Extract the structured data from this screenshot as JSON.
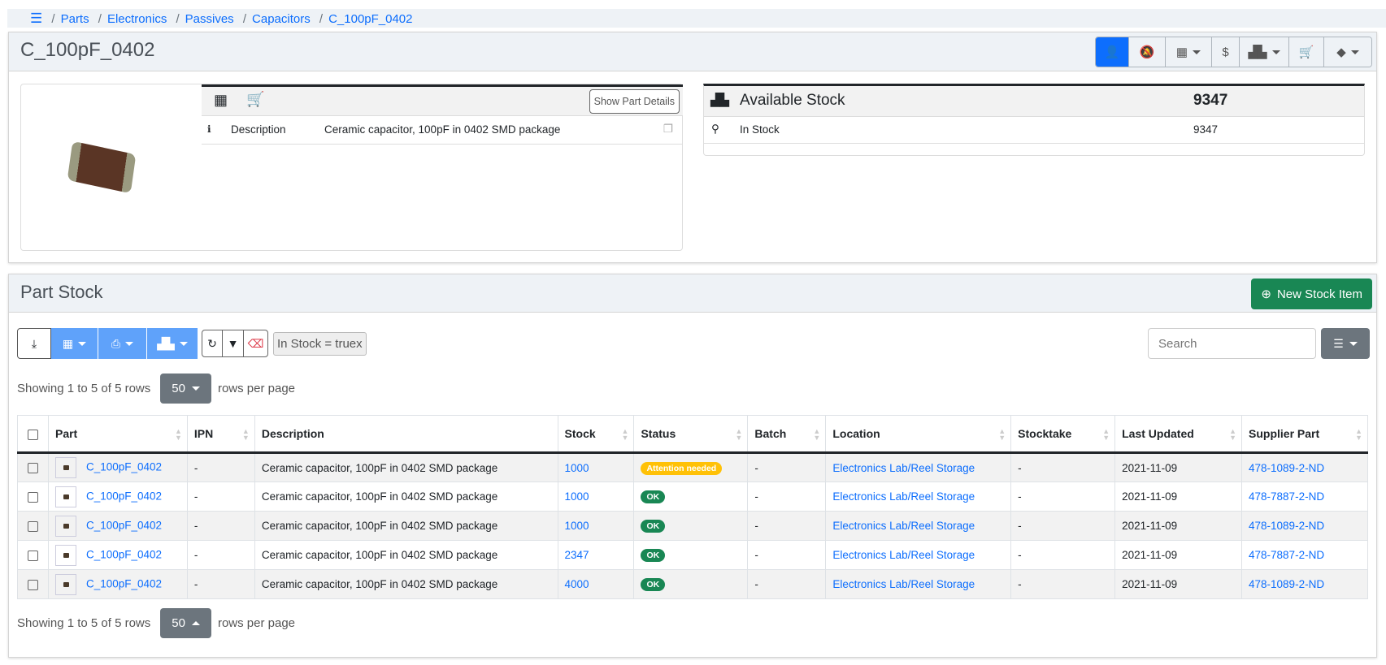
{
  "breadcrumb": [
    "Parts",
    "Electronics",
    "Passives",
    "Capacitors",
    "C_100pF_0402"
  ],
  "part": {
    "title": "C_100pF_0402",
    "show_details_label": "Show Part Details",
    "description_label": "Description",
    "description": "Ceramic capacitor, 100pF in 0402 SMD package"
  },
  "stock": {
    "available_label": "Available Stock",
    "available_value": "9347",
    "in_stock_label": "In Stock",
    "in_stock_value": "9347"
  },
  "part_stock": {
    "title": "Part Stock",
    "new_button": "New Stock Item",
    "filter_label": "In Stock = true",
    "filter_remove": "x",
    "search_placeholder": "Search",
    "showing": "Showing 1 to 5 of 5 rows",
    "page_size": "50",
    "rows_per_page": "rows per page"
  },
  "colors": {
    "primary": "#0d6efd",
    "success": "#198754",
    "warning": "#ffc107",
    "light_primary": "#5fa2fa"
  },
  "table": {
    "headers": [
      "Part",
      "IPN",
      "Description",
      "Stock",
      "Status",
      "Batch",
      "Location",
      "Stocktake",
      "Last Updated",
      "Supplier Part"
    ],
    "rows": [
      {
        "part": "C_100pF_0402",
        "ipn": "-",
        "description": "Ceramic capacitor, 100pF in 0402 SMD package",
        "stock": "1000",
        "status": "Attention needed",
        "status_color": "#ffc107",
        "batch": "-",
        "location": "Electronics Lab/Reel Storage",
        "stocktake": "-",
        "updated": "2021-11-09",
        "supplier": "478-1089-2-ND"
      },
      {
        "part": "C_100pF_0402",
        "ipn": "-",
        "description": "Ceramic capacitor, 100pF in 0402 SMD package",
        "stock": "1000",
        "status": "OK",
        "status_color": "#198754",
        "batch": "-",
        "location": "Electronics Lab/Reel Storage",
        "stocktake": "-",
        "updated": "2021-11-09",
        "supplier": "478-7887-2-ND"
      },
      {
        "part": "C_100pF_0402",
        "ipn": "-",
        "description": "Ceramic capacitor, 100pF in 0402 SMD package",
        "stock": "1000",
        "status": "OK",
        "status_color": "#198754",
        "batch": "-",
        "location": "Electronics Lab/Reel Storage",
        "stocktake": "-",
        "updated": "2021-11-09",
        "supplier": "478-1089-2-ND"
      },
      {
        "part": "C_100pF_0402",
        "ipn": "-",
        "description": "Ceramic capacitor, 100pF in 0402 SMD package",
        "stock": "2347",
        "status": "OK",
        "status_color": "#198754",
        "batch": "-",
        "location": "Electronics Lab/Reel Storage",
        "stocktake": "-",
        "updated": "2021-11-09",
        "supplier": "478-7887-2-ND"
      },
      {
        "part": "C_100pF_0402",
        "ipn": "-",
        "description": "Ceramic capacitor, 100pF in 0402 SMD package",
        "stock": "4000",
        "status": "OK",
        "status_color": "#198754",
        "batch": "-",
        "location": "Electronics Lab/Reel Storage",
        "stocktake": "-",
        "updated": "2021-11-09",
        "supplier": "478-1089-2-ND"
      }
    ]
  }
}
